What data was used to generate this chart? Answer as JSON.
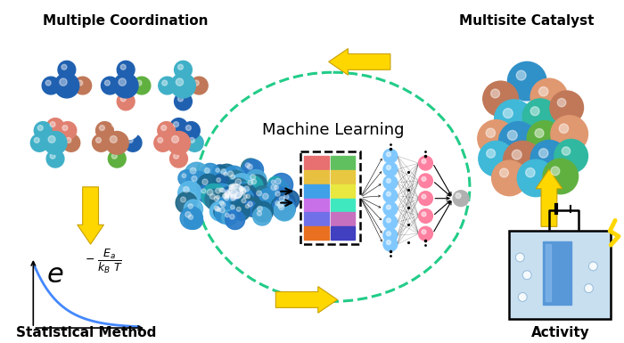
{
  "bg_color": "#ffffff",
  "top_left_label": "Multiple Coordination",
  "top_right_label": "Multisite Catalyst",
  "bottom_left_label": "Statistical Method",
  "bottom_right_label": "Activity",
  "center_label": "Machine Learning",
  "arrow_color": "#FFD700",
  "arrow_edge_color": "#C8A000",
  "ellipse_color": "#22cc88",
  "mol_colors_row1": [
    [
      "#2060b0",
      "#c07858",
      "#ffffff"
    ],
    [
      "#2060b0",
      "#60b040",
      "#e08070"
    ],
    [
      "#40b0c8",
      "#c07858",
      "#2060b0"
    ]
  ],
  "mol_colors_row2": [
    [
      "#40b0c8",
      "#c07858",
      "#e08070"
    ],
    [
      "#c07858",
      "#ffffff",
      "#60b040"
    ],
    [
      "#e08070",
      "#40b0c8",
      "#2060b0"
    ]
  ],
  "cat_colors": [
    "#3090c8",
    "#40b8d8",
    "#30b8a0",
    "#c87850",
    "#e09870",
    "#80d0d0",
    "#2878a0",
    "#b08870",
    "#60c0b0"
  ],
  "cluster_colors": [
    "#1a5fa0",
    "#2878c8",
    "#3090d0",
    "#4aa8d8",
    "#5ab8e8",
    "#1a6890",
    "#206888",
    "#287898",
    "#20a8b0"
  ],
  "nn_col1_colors": [
    "#e87070",
    "#e8c040",
    "#40a0e8",
    "#c870e8",
    "#7070e8",
    "#e87020"
  ],
  "nn_col2_colors": [
    "#60c060",
    "#e8c840",
    "#e8e840",
    "#40e8c0",
    "#c870c0",
    "#4040c0"
  ],
  "blue_node_color": "#80c8ff",
  "pink_node_color": "#ff80a0",
  "gray_node_color": "#b0b0b0"
}
